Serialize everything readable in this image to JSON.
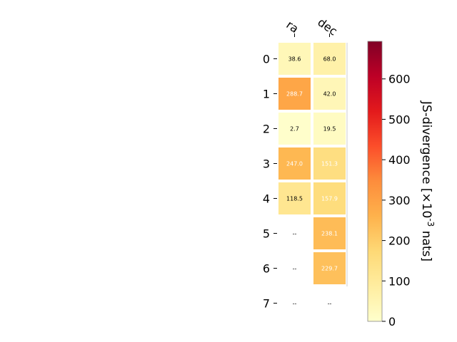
{
  "chart_data": {
    "type": "heatmap",
    "columns": [
      "ra",
      "dec"
    ],
    "rows": [
      "0",
      "1",
      "2",
      "3",
      "4",
      "5",
      "6",
      "7"
    ],
    "values": [
      [
        38.6,
        68.0
      ],
      [
        288.7,
        42.0
      ],
      [
        2.7,
        19.5
      ],
      [
        247.0,
        151.3
      ],
      [
        118.5,
        157.9
      ],
      [
        null,
        238.1
      ],
      [
        null,
        229.7
      ],
      [
        null,
        null
      ]
    ],
    "cell_labels": [
      [
        "38.6",
        "68.0"
      ],
      [
        "288.7",
        "42.0"
      ],
      [
        "2.7",
        "19.5"
      ],
      [
        "247.0",
        "151.3"
      ],
      [
        "118.5",
        "157.9"
      ],
      [
        "--",
        "238.1"
      ],
      [
        "--",
        "229.7"
      ],
      [
        "--",
        "--"
      ]
    ],
    "colorbar": {
      "label": "JS-divergence [×10$^{-3}$ nats]",
      "range": [
        0,
        693
      ],
      "ticks": [
        "0",
        "100",
        "200",
        "300",
        "400",
        "500",
        "600"
      ],
      "colormap": "YlOrRd"
    },
    "grid": false
  }
}
